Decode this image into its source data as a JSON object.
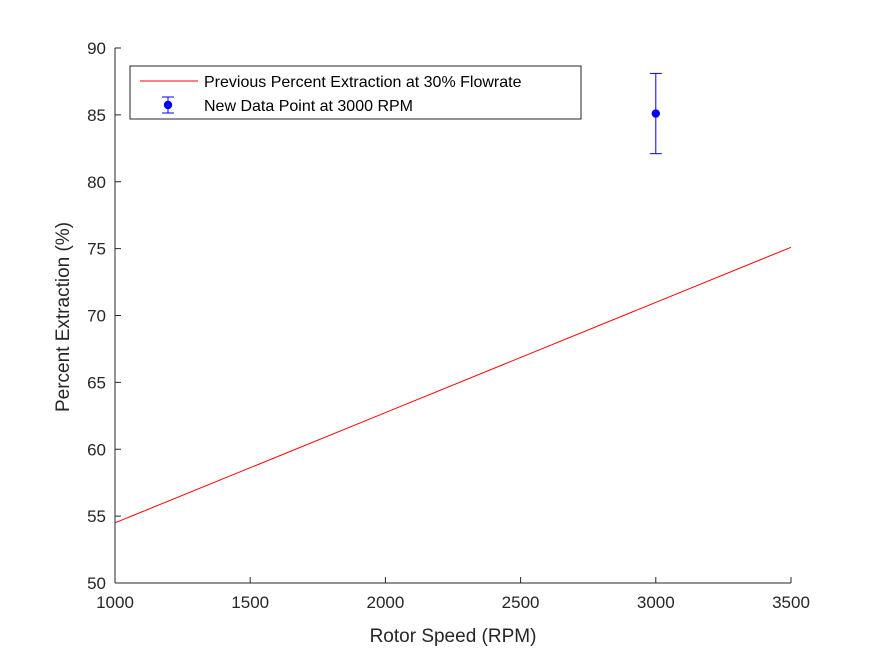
{
  "chart_data": {
    "type": "line",
    "xlabel": "Rotor Speed (RPM)",
    "ylabel": "Percent Extraction (%)",
    "xlim": [
      1000,
      3500
    ],
    "ylim": [
      50,
      90
    ],
    "xticks": [
      "1000",
      "1500",
      "2000",
      "2500",
      "3000",
      "3500"
    ],
    "yticks": [
      "50",
      "55",
      "60",
      "65",
      "70",
      "75",
      "80",
      "85",
      "90"
    ],
    "grid": false,
    "legend_position": "top-left",
    "series": [
      {
        "name": "Previous Percent Extraction at 30% Flowrate",
        "kind": "line",
        "color": "#ff0000",
        "x": [
          1000,
          3500
        ],
        "y": [
          54.5,
          75.1
        ]
      },
      {
        "name": "New Data Point at 3000 RPM",
        "kind": "errorbar",
        "color": "#0000ff",
        "x": [
          3000
        ],
        "y": [
          85.1
        ],
        "error": [
          3.0
        ]
      }
    ]
  }
}
